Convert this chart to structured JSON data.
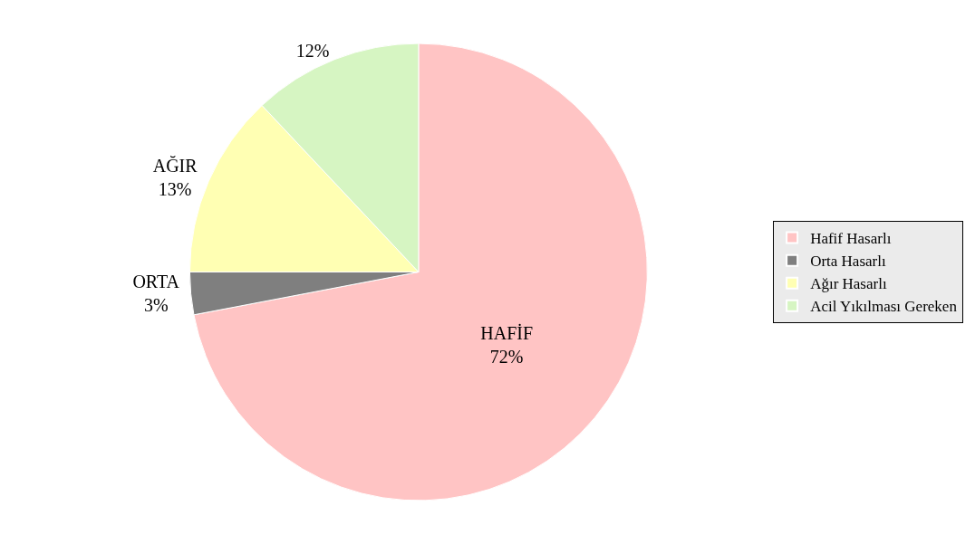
{
  "chart_data": {
    "type": "pie",
    "categories": [
      "Hafif Hasarlı",
      "Orta Hasarlı",
      "Ağır Hasarlı",
      "Acil Yıkılması Gereken"
    ],
    "values": [
      72,
      3,
      13,
      12
    ],
    "value_labels": [
      "HAFİF\n72%",
      "ORTA\n3%",
      "AĞIR\n13%",
      "12%"
    ],
    "colors": [
      "#ffc4c4",
      "#7f7f7f",
      "#ffffb3",
      "#d6f5c2"
    ],
    "legend": "right"
  }
}
